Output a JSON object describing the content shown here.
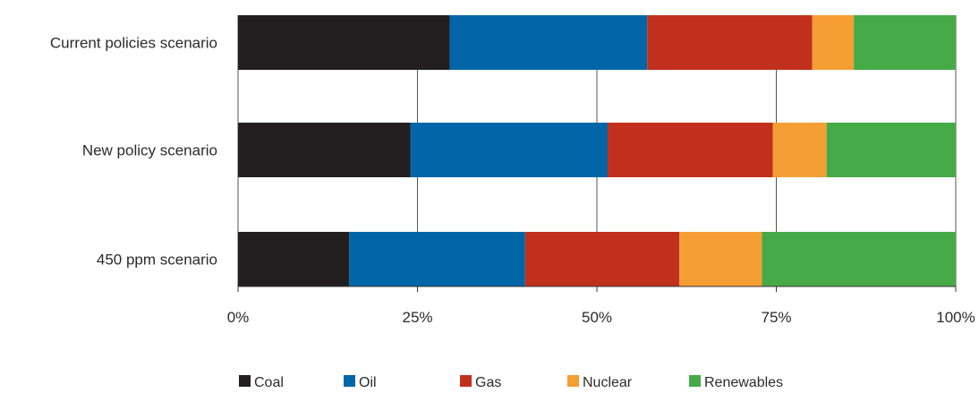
{
  "chart_data": {
    "type": "bar",
    "orientation": "horizontal",
    "stacked": true,
    "normalized": true,
    "title": "",
    "xlabel": "",
    "ylabel": "",
    "categories": [
      "Current policies scenario",
      "New policy scenario",
      "450 ppm scenario"
    ],
    "series": [
      {
        "name": "Coal",
        "color": "#231f20",
        "values": [
          29.5,
          24.0,
          15.5
        ]
      },
      {
        "name": "Oil",
        "color": "#0066a8",
        "values": [
          27.5,
          27.5,
          24.5
        ]
      },
      {
        "name": "Gas",
        "color": "#c1301c",
        "values": [
          23.0,
          23.0,
          21.5
        ]
      },
      {
        "name": "Nuclear",
        "color": "#f59e33",
        "values": [
          5.8,
          7.5,
          11.5
        ]
      },
      {
        "name": "Renewables",
        "color": "#46ab46",
        "values": [
          14.2,
          18.0,
          27.0
        ]
      }
    ],
    "xlim": [
      0,
      100
    ],
    "x_ticks": [
      0,
      25,
      50,
      75,
      100
    ],
    "x_tick_labels": [
      "0%",
      "25%",
      "50%",
      "75%",
      "100%"
    ],
    "grid": "vertical",
    "legend_position": "bottom"
  }
}
